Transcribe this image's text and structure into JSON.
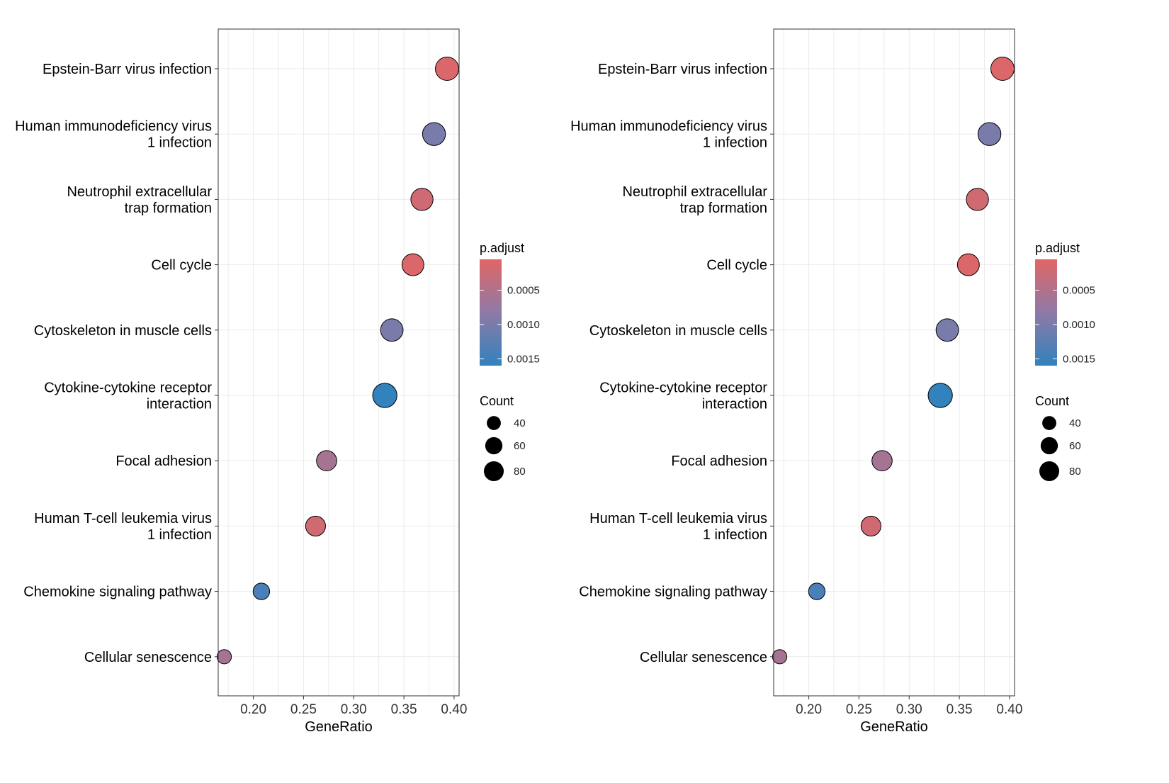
{
  "chart_data": [
    {
      "type": "scatter",
      "xlabel": "GeneRatio",
      "xlim": [
        0.165,
        0.405
      ],
      "x_ticks": [
        "0.20",
        "0.25",
        "0.30",
        "0.35",
        "0.40"
      ],
      "x_tick_values": [
        0.2,
        0.25,
        0.3,
        0.35,
        0.4
      ],
      "grid": true,
      "categories": [
        "Epstein-Barr virus infection",
        "Human immunodeficiency virus 1 infection",
        "Neutrophil extracellular trap formation",
        "Cell cycle",
        "Cytoskeleton in muscle cells",
        "Cytokine-cytokine receptor interaction",
        "Focal adhesion",
        "Human T-cell leukemia virus 1 infection",
        "Chemokine signaling pathway",
        "Cellular senescence"
      ],
      "category_lines": [
        [
          "Epstein-Barr virus infection"
        ],
        [
          "Human immunodeficiency virus",
          "1 infection"
        ],
        [
          "Neutrophil extracellular",
          "trap formation"
        ],
        [
          "Cell cycle"
        ],
        [
          "Cytoskeleton in muscle cells"
        ],
        [
          "Cytokine-cytokine receptor",
          "interaction"
        ],
        [
          "Focal adhesion"
        ],
        [
          "Human T-cell leukemia virus",
          "1 infection"
        ],
        [
          "Chemokine signaling pathway"
        ],
        [
          "Cellular senescence"
        ]
      ],
      "points": [
        {
          "category": "Epstein-Barr virus infection",
          "gene_ratio": 0.393,
          "count": 80,
          "p_adjust": 0.0001
        },
        {
          "category": "Human immunodeficiency virus 1 infection",
          "gene_ratio": 0.38,
          "count": 77,
          "p_adjust": 0.001
        },
        {
          "category": "Neutrophil extracellular trap formation",
          "gene_ratio": 0.368,
          "count": 72,
          "p_adjust": 0.0002
        },
        {
          "category": "Cell cycle",
          "gene_ratio": 0.359,
          "count": 70,
          "p_adjust": 0.0001
        },
        {
          "category": "Cytoskeleton in muscle cells",
          "gene_ratio": 0.338,
          "count": 74,
          "p_adjust": 0.001
        },
        {
          "category": "Cytokine-cytokine receptor interaction",
          "gene_ratio": 0.331,
          "count": 86,
          "p_adjust": 0.0016
        },
        {
          "category": "Focal adhesion",
          "gene_ratio": 0.273,
          "count": 60,
          "p_adjust": 0.0006
        },
        {
          "category": "Human T-cell leukemia virus 1 infection",
          "gene_ratio": 0.262,
          "count": 58,
          "p_adjust": 0.0002
        },
        {
          "category": "Chemokine signaling pathway",
          "gene_ratio": 0.208,
          "count": 40,
          "p_adjust": 0.0014
        },
        {
          "category": "Cellular senescence",
          "gene_ratio": 0.171,
          "count": 30,
          "p_adjust": 0.0006
        }
      ],
      "color_legend": {
        "title": "p.adjust",
        "labels": [
          "0.0005",
          "0.0010",
          "0.0015"
        ],
        "values": [
          0.0005,
          0.001,
          0.0015
        ],
        "range": [
          5e-05,
          0.0016
        ],
        "low_color": "#E06666",
        "high_color": "#3182BD"
      },
      "size_legend": {
        "title": "Count",
        "labels": [
          "40",
          "60",
          "80"
        ],
        "values": [
          40,
          60,
          80
        ]
      }
    },
    {
      "type": "scatter",
      "xlabel": "GeneRatio",
      "xlim": [
        0.165,
        0.405
      ],
      "x_ticks": [
        "0.20",
        "0.25",
        "0.30",
        "0.35",
        "0.40"
      ],
      "x_tick_values": [
        0.2,
        0.25,
        0.3,
        0.35,
        0.4
      ],
      "grid": true,
      "categories": [
        "Epstein-Barr virus infection",
        "Human immunodeficiency virus 1 infection",
        "Neutrophil extracellular trap formation",
        "Cell cycle",
        "Cytoskeleton in muscle cells",
        "Cytokine-cytokine receptor interaction",
        "Focal adhesion",
        "Human T-cell leukemia virus 1 infection",
        "Chemokine signaling pathway",
        "Cellular senescence"
      ],
      "category_lines": [
        [
          "Epstein-Barr virus infection"
        ],
        [
          "Human immunodeficiency virus",
          "1 infection"
        ],
        [
          "Neutrophil extracellular",
          "trap formation"
        ],
        [
          "Cell cycle"
        ],
        [
          "Cytoskeleton in muscle cells"
        ],
        [
          "Cytokine-cytokine receptor",
          "interaction"
        ],
        [
          "Focal adhesion"
        ],
        [
          "Human T-cell leukemia virus",
          "1 infection"
        ],
        [
          "Chemokine signaling pathway"
        ],
        [
          "Cellular senescence"
        ]
      ],
      "points": [
        {
          "category": "Epstein-Barr virus infection",
          "gene_ratio": 0.393,
          "count": 80,
          "p_adjust": 0.0001
        },
        {
          "category": "Human immunodeficiency virus 1 infection",
          "gene_ratio": 0.38,
          "count": 77,
          "p_adjust": 0.001
        },
        {
          "category": "Neutrophil extracellular trap formation",
          "gene_ratio": 0.368,
          "count": 72,
          "p_adjust": 0.0002
        },
        {
          "category": "Cell cycle",
          "gene_ratio": 0.359,
          "count": 70,
          "p_adjust": 0.0001
        },
        {
          "category": "Cytoskeleton in muscle cells",
          "gene_ratio": 0.338,
          "count": 74,
          "p_adjust": 0.001
        },
        {
          "category": "Cytokine-cytokine receptor interaction",
          "gene_ratio": 0.331,
          "count": 86,
          "p_adjust": 0.0016
        },
        {
          "category": "Focal adhesion",
          "gene_ratio": 0.273,
          "count": 60,
          "p_adjust": 0.0006
        },
        {
          "category": "Human T-cell leukemia virus 1 infection",
          "gene_ratio": 0.262,
          "count": 58,
          "p_adjust": 0.0002
        },
        {
          "category": "Chemokine signaling pathway",
          "gene_ratio": 0.208,
          "count": 40,
          "p_adjust": 0.0014
        },
        {
          "category": "Cellular senescence",
          "gene_ratio": 0.171,
          "count": 30,
          "p_adjust": 0.0006
        }
      ],
      "color_legend": {
        "title": "p.adjust",
        "labels": [
          "0.0005",
          "0.0010",
          "0.0015"
        ],
        "values": [
          0.0005,
          0.001,
          0.0015
        ],
        "range": [
          5e-05,
          0.0016
        ],
        "low_color": "#E06666",
        "high_color": "#3182BD"
      },
      "size_legend": {
        "title": "Count",
        "labels": [
          "40",
          "60",
          "80"
        ],
        "values": [
          40,
          60,
          80
        ]
      }
    }
  ]
}
